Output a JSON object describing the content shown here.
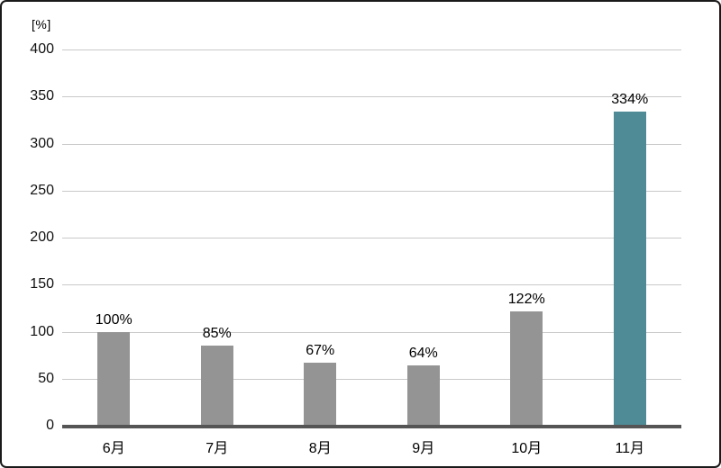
{
  "chart": {
    "colors": {
      "bar_default": "#949494",
      "bar_highlight": "#4E8B96",
      "gridline": "#c9c9c9",
      "axis_line": "#555555",
      "text": "#000000",
      "frame_border": "#1a1a1a",
      "background": "#ffffff"
    }
  },
  "chart_data": {
    "type": "bar",
    "title": "",
    "xlabel": "",
    "ylabel": "[%]",
    "categories": [
      "6月",
      "7月",
      "8月",
      "9月",
      "10月",
      "11月"
    ],
    "values": [
      100,
      85,
      67,
      64,
      122,
      334
    ],
    "value_labels": [
      "100%",
      "85%",
      "67%",
      "64%",
      "122%",
      "334%"
    ],
    "highlight_index": 5,
    "ylim": [
      0,
      400
    ],
    "yticks": [
      0,
      50,
      100,
      150,
      200,
      250,
      300,
      350,
      400
    ],
    "grid": true,
    "legend": false
  }
}
